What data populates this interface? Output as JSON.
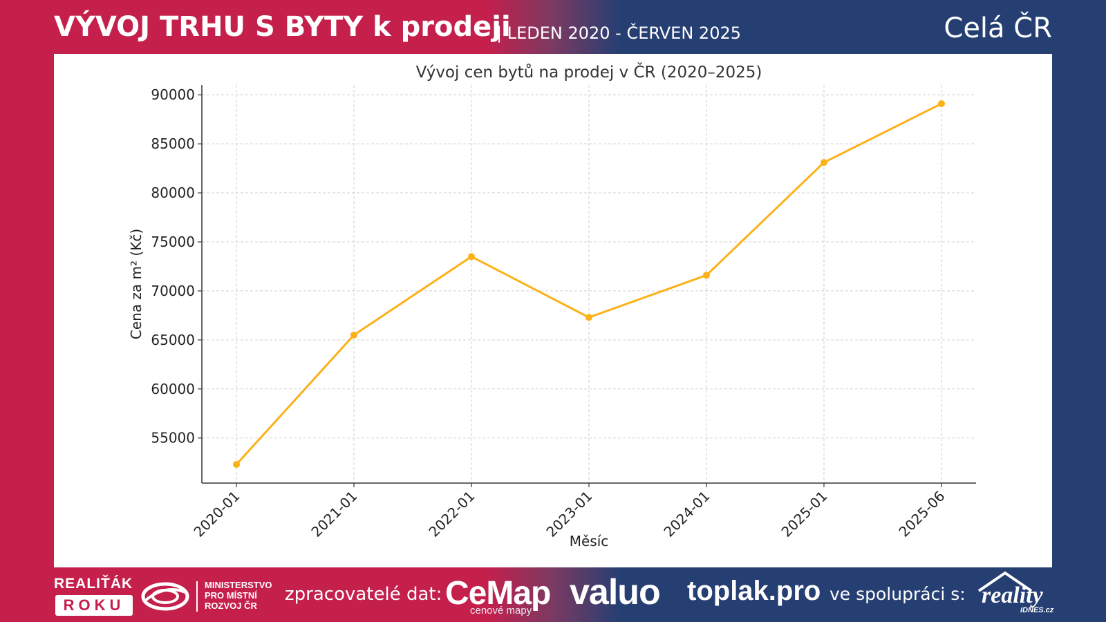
{
  "header": {
    "title": "VÝVOJ TRHU S BYTY k prodeji",
    "subtitle": "| LEDEN 2020 - ČERVEN 2025",
    "region": "Celá ČR"
  },
  "chart_data": {
    "type": "line",
    "title": "Vývoj cen bytů na prodej v ČR (2020–2025)",
    "xlabel": "Měsíc",
    "ylabel": "Cena za m² (Kč)",
    "categories": [
      "2020-01",
      "2021-01",
      "2022-01",
      "2023-01",
      "2024-01",
      "2025-01",
      "2025-06"
    ],
    "series": [
      {
        "values": [
          52300,
          65500,
          73500,
          67300,
          71600,
          83100,
          89100
        ],
        "color": "#fbb117"
      }
    ],
    "yticks": [
      55000,
      60000,
      65000,
      70000,
      75000,
      80000,
      85000,
      90000
    ],
    "ylim": [
      50400,
      91000
    ],
    "grid": true,
    "legend": "none"
  },
  "footer": {
    "realitak_top": "REALIŤÁK",
    "realitak_box": "ROKU",
    "ministry_line1": "MINISTERSTVO",
    "ministry_line2": "PRO MÍSTNÍ",
    "ministry_line3": "ROZVOJ ČR",
    "processors_label": "zpracovatelé dat:",
    "cemap": "CeMap",
    "cemap_sub": "cenové mapy",
    "valuo": "valuo",
    "toplak": "toplak.pro",
    "coop_label": "ve spolupráci s:",
    "reality": "reality",
    "idnes": "iDNES.cz"
  }
}
